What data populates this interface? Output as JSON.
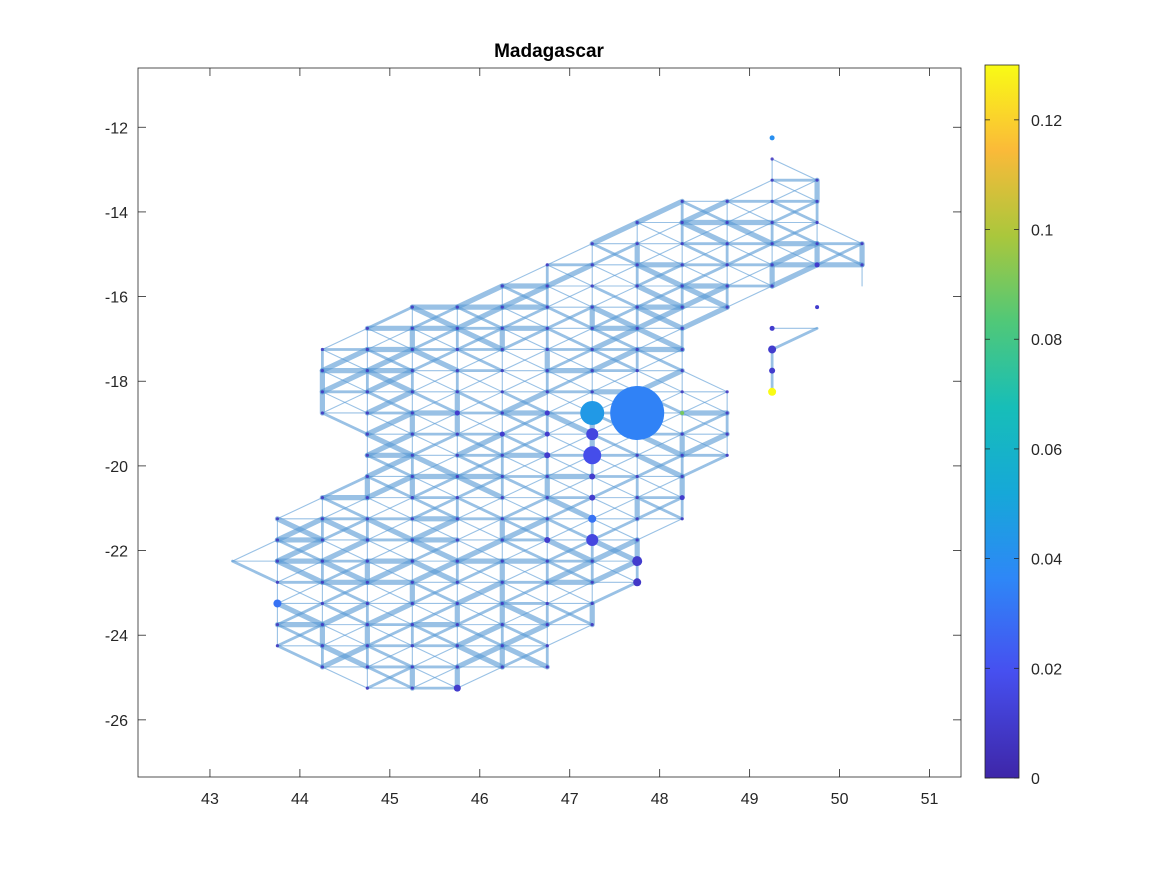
{
  "chart_data": {
    "type": "scatter",
    "title": "Madagascar",
    "xlabel": "",
    "ylabel": "",
    "xlim": [
      42.2,
      51.35
    ],
    "ylim": [
      -27.35,
      -10.6
    ],
    "x_ticks": [
      43,
      44,
      45,
      46,
      47,
      48,
      49,
      50,
      51
    ],
    "y_ticks": [
      -12,
      -14,
      -16,
      -18,
      -20,
      -22,
      -24,
      -26
    ],
    "x_tick_labels": [
      "43",
      "44",
      "45",
      "46",
      "47",
      "48",
      "49",
      "50",
      "51"
    ],
    "y_tick_labels": [
      "-12",
      "-14",
      "-16",
      "-18",
      "-20",
      "-22",
      "-24",
      "-26"
    ],
    "grid": false,
    "colorbar": {
      "range": [
        0,
        0.13
      ],
      "ticks": [
        0,
        0.02,
        0.04,
        0.06,
        0.08,
        0.1,
        0.12
      ],
      "tick_labels": [
        "0",
        "0.02",
        "0.04",
        "0.06",
        "0.08",
        "0.1",
        "0.12"
      ],
      "colormap": "parula"
    },
    "network": {
      "edge_color": "#5b9bd5",
      "grid_step": [
        0.5,
        0.5
      ],
      "row_extents": [
        [
          -12.75,
          49.25,
          49.25
        ],
        [
          -13.25,
          49.25,
          49.75
        ],
        [
          -13.75,
          48.25,
          49.75
        ],
        [
          -14.25,
          47.75,
          49.75
        ],
        [
          -14.75,
          47.25,
          50.25
        ],
        [
          -15.25,
          46.75,
          50.25
        ],
        [
          -15.75,
          46.25,
          49.25
        ],
        [
          -16.25,
          45.25,
          48.75
        ],
        [
          -16.75,
          44.75,
          48.25
        ],
        [
          -17.25,
          44.25,
          48.25
        ],
        [
          -17.75,
          44.25,
          48.25
        ],
        [
          -18.25,
          44.25,
          48.75
        ],
        [
          -18.75,
          44.25,
          48.75
        ],
        [
          -19.25,
          44.75,
          48.75
        ],
        [
          -19.75,
          44.75,
          48.75
        ],
        [
          -20.25,
          44.75,
          48.25
        ],
        [
          -20.75,
          44.25,
          48.25
        ],
        [
          -21.25,
          43.75,
          48.25
        ],
        [
          -21.75,
          43.75,
          47.75
        ],
        [
          -22.25,
          43.75,
          47.75
        ],
        [
          -22.75,
          43.75,
          47.75
        ],
        [
          -23.25,
          43.75,
          47.25
        ],
        [
          -23.75,
          43.75,
          47.25
        ],
        [
          -24.25,
          43.75,
          46.75
        ],
        [
          -24.75,
          44.25,
          46.75
        ],
        [
          -25.25,
          44.75,
          45.75
        ]
      ],
      "extra_edges": [
        [
          [
            43.25,
            -22.25
          ],
          [
            43.75,
            -21.75
          ]
        ],
        [
          [
            43.25,
            -22.25
          ],
          [
            43.75,
            -22.75
          ]
        ],
        [
          [
            43.25,
            -22.25
          ],
          [
            43.75,
            -22.25
          ]
        ],
        [
          [
            49.25,
            -17.25
          ],
          [
            49.75,
            -16.75
          ]
        ],
        [
          [
            49.25,
            -16.75
          ],
          [
            49.75,
            -16.75
          ]
        ],
        [
          [
            49.25,
            -17.25
          ],
          [
            49.25,
            -18.25
          ]
        ],
        [
          [
            50.25,
            -15.25
          ],
          [
            50.25,
            -15.75
          ]
        ]
      ]
    },
    "nodes": [
      {
        "x": 47.75,
        "y": -18.75,
        "value": 0.035,
        "size": 27
      },
      {
        "x": 47.25,
        "y": -18.75,
        "value": 0.045,
        "size": 12
      },
      {
        "x": 47.25,
        "y": -19.25,
        "value": 0.015,
        "size": 6
      },
      {
        "x": 47.25,
        "y": -19.75,
        "value": 0.018,
        "size": 9
      },
      {
        "x": 47.25,
        "y": -20.25,
        "value": 0.01,
        "size": 3
      },
      {
        "x": 47.25,
        "y": -20.75,
        "value": 0.01,
        "size": 3
      },
      {
        "x": 47.25,
        "y": -21.25,
        "value": 0.03,
        "size": 4
      },
      {
        "x": 47.25,
        "y": -21.75,
        "value": 0.015,
        "size": 6
      },
      {
        "x": 47.75,
        "y": -22.25,
        "value": 0.01,
        "size": 5
      },
      {
        "x": 47.75,
        "y": -22.75,
        "value": 0.008,
        "size": 4
      },
      {
        "x": 49.25,
        "y": -18.25,
        "value": 0.13,
        "size": 4
      },
      {
        "x": 49.25,
        "y": -17.25,
        "value": 0.01,
        "size": 4
      },
      {
        "x": 49.25,
        "y": -17.75,
        "value": 0.01,
        "size": 3
      },
      {
        "x": 49.25,
        "y": -12.25,
        "value": 0.04,
        "size": 2.5
      },
      {
        "x": 49.75,
        "y": -15.25,
        "value": 0.01,
        "size": 2.5
      },
      {
        "x": 49.75,
        "y": -16.25,
        "value": 0.01,
        "size": 2
      },
      {
        "x": 43.75,
        "y": -23.25,
        "value": 0.03,
        "size": 4
      },
      {
        "x": 45.75,
        "y": -25.25,
        "value": 0.01,
        "size": 3.5
      },
      {
        "x": 46.75,
        "y": -19.75,
        "value": 0.01,
        "size": 3
      },
      {
        "x": 46.75,
        "y": -21.75,
        "value": 0.01,
        "size": 3
      },
      {
        "x": 46.75,
        "y": -19.25,
        "value": 0.01,
        "size": 2.5
      },
      {
        "x": 46.75,
        "y": -18.75,
        "value": 0.01,
        "size": 2.5
      },
      {
        "x": 48.25,
        "y": -20.75,
        "value": 0.01,
        "size": 2.5
      },
      {
        "x": 46.25,
        "y": -19.25,
        "value": 0.01,
        "size": 2.5
      },
      {
        "x": 45.75,
        "y": -18.75,
        "value": 0.01,
        "size": 2.5
      },
      {
        "x": 49.25,
        "y": -16.75,
        "value": 0.01,
        "size": 2.5
      },
      {
        "x": 48.25,
        "y": -18.75,
        "value": 0.09,
        "size": 2
      }
    ]
  }
}
